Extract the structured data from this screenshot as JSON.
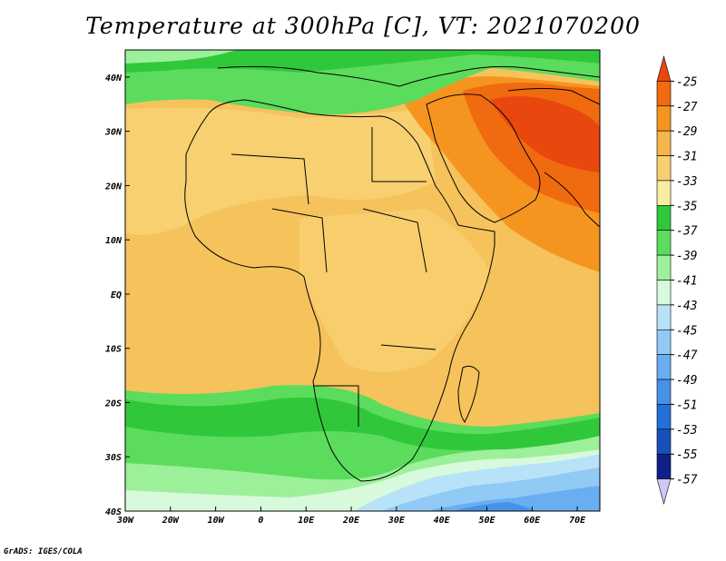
{
  "title": "Temperature at 300hPa [C], VT: 2021070200",
  "footer": "GrADS: IGES/COLA",
  "map": {
    "lon_range": [
      -30,
      75
    ],
    "lat_range": [
      -40,
      45
    ],
    "lon_ticks": [
      {
        "value": -30,
        "label": "30W"
      },
      {
        "value": -20,
        "label": "20W"
      },
      {
        "value": -10,
        "label": "10W"
      },
      {
        "value": 0,
        "label": "0"
      },
      {
        "value": 10,
        "label": "10E"
      },
      {
        "value": 20,
        "label": "20E"
      },
      {
        "value": 30,
        "label": "30E"
      },
      {
        "value": 40,
        "label": "40E"
      },
      {
        "value": 50,
        "label": "50E"
      },
      {
        "value": 60,
        "label": "60E"
      },
      {
        "value": 70,
        "label": "70E"
      }
    ],
    "lat_ticks": [
      {
        "value": 40,
        "label": "40N"
      },
      {
        "value": 30,
        "label": "30N"
      },
      {
        "value": 20,
        "label": "20N"
      },
      {
        "value": 10,
        "label": "10N"
      },
      {
        "value": 0,
        "label": "EQ"
      },
      {
        "value": -10,
        "label": "10S"
      },
      {
        "value": -20,
        "label": "20S"
      },
      {
        "value": -30,
        "label": "30S"
      },
      {
        "value": -40,
        "label": "40S"
      }
    ]
  },
  "colorbar": {
    "levels": [
      "-25",
      "-27",
      "-29",
      "-31",
      "-33",
      "-35",
      "-37",
      "-39",
      "-41",
      "-43",
      "-45",
      "-47",
      "-49",
      "-51",
      "-53",
      "-55",
      "-57"
    ],
    "colors": [
      "#e8480e",
      "#f06a10",
      "#f59520",
      "#f5b54a",
      "#f8d070",
      "#f8eca0",
      "#30c83a",
      "#5cdc5c",
      "#9cf09a",
      "#d8fadc",
      "#b8e2f8",
      "#90caf5",
      "#68aef0",
      "#4592e8",
      "#2570d8",
      "#1650b8",
      "#10208a",
      "#cfc8f5"
    ]
  },
  "chart_data": {
    "type": "heatmap",
    "title": "Temperature at 300hPa [C], VT: 2021070200",
    "variable": "Temperature at 300hPa",
    "units": "C",
    "valid_time": "2021070200",
    "x_range": [
      -30,
      75
    ],
    "y_range": [
      -40,
      45
    ],
    "regions": [
      {
        "area": "Iran / Arabian Gulf / Pakistan",
        "value_range": [
          -27,
          -25
        ]
      },
      {
        "area": "Arabian Peninsula / Red Sea",
        "value_range": [
          -29,
          -27
        ]
      },
      {
        "area": "Sahara / North Africa",
        "value_range": [
          -33,
          -31
        ]
      },
      {
        "area": "Central Africa / equatorial Atlantic",
        "value_range": [
          -33,
          -31
        ]
      },
      {
        "area": "Mediterranean / Europe",
        "value_range": [
          -39,
          -35
        ]
      },
      {
        "area": "Southern Africa / 20S-30S band",
        "value_range": [
          -39,
          -35
        ]
      },
      {
        "area": "Southern Ocean 35S-40S",
        "value_range": [
          -49,
          -41
        ]
      }
    ]
  }
}
